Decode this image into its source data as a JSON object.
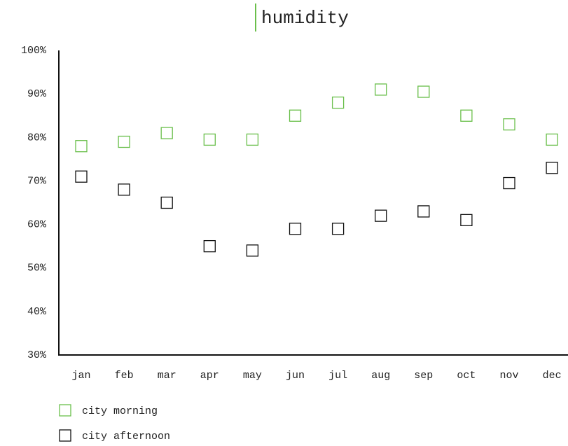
{
  "chart_data": {
    "type": "scatter",
    "title": "humidity",
    "categories": [
      "jan",
      "feb",
      "mar",
      "apr",
      "may",
      "jun",
      "jul",
      "aug",
      "sep",
      "oct",
      "nov",
      "dec"
    ],
    "series": [
      {
        "name": "city morning",
        "color": "#6abf4b",
        "values": [
          78,
          79,
          81,
          79.5,
          79.5,
          85,
          88,
          91,
          90.5,
          85,
          83,
          79.5
        ]
      },
      {
        "name": "city afternoon",
        "color": "#111111",
        "values": [
          71,
          68,
          65,
          55,
          54,
          59,
          59,
          62,
          63,
          61,
          69.5,
          73
        ]
      }
    ],
    "ylim": [
      30,
      100
    ],
    "yticks": [
      {
        "value": 30,
        "label": "30%"
      },
      {
        "value": 40,
        "label": "40%"
      },
      {
        "value": 50,
        "label": "50%"
      },
      {
        "value": 60,
        "label": "60%"
      },
      {
        "value": 70,
        "label": "70%"
      },
      {
        "value": 80,
        "label": "80%"
      },
      {
        "value": 90,
        "label": "90%"
      },
      {
        "value": 100,
        "label": "100%"
      }
    ],
    "grid": false
  }
}
